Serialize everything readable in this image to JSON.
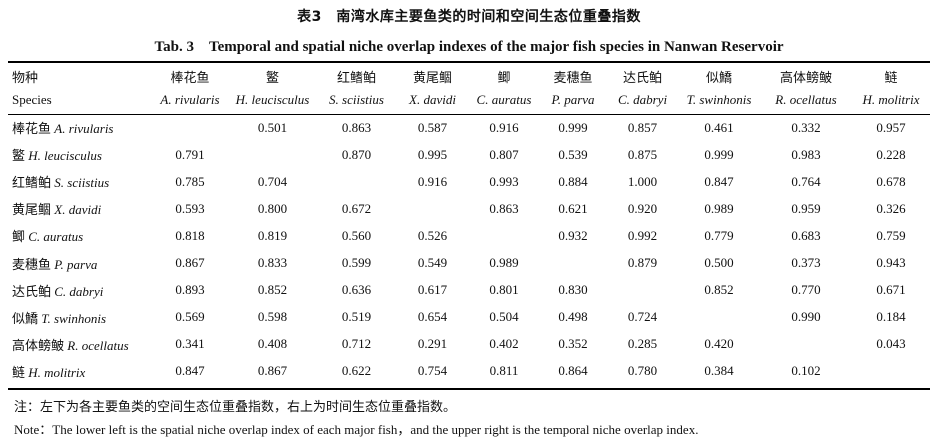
{
  "title_cn": "表3　南湾水库主要鱼类的时间和空间生态位重叠指数",
  "title_en": "Tab. 3　Temporal and spatial niche overlap indexes of the major fish species in Nanwan Reservoir",
  "header": {
    "first_cn": "物种",
    "first_en": "Species",
    "columns": [
      {
        "cn": "棒花鱼",
        "sci": "A. rivularis"
      },
      {
        "cn": "鳘",
        "sci": "H. leucisculus"
      },
      {
        "cn": "红鳍鲌",
        "sci": "S. sciistius"
      },
      {
        "cn": "黄尾鲴",
        "sci": "X. davidi"
      },
      {
        "cn": "鲫",
        "sci": "C. auratus"
      },
      {
        "cn": "麦穗鱼",
        "sci": "P. parva"
      },
      {
        "cn": "达氏鲌",
        "sci": "C. dabryi"
      },
      {
        "cn": "似鱎",
        "sci": "T. swinhonis"
      },
      {
        "cn": "高体鳑鲏",
        "sci": "R. ocellatus"
      },
      {
        "cn": "鲢",
        "sci": "H. molitrix"
      }
    ]
  },
  "rows": [
    {
      "cn": "棒花鱼",
      "sci": "A. rivularis",
      "values": [
        "",
        "0.501",
        "0.863",
        "0.587",
        "0.916",
        "0.999",
        "0.857",
        "0.461",
        "0.332",
        "0.957"
      ]
    },
    {
      "cn": "鳘",
      "sci": "H. leucisculus",
      "values": [
        "0.791",
        "",
        "0.870",
        "0.995",
        "0.807",
        "0.539",
        "0.875",
        "0.999",
        "0.983",
        "0.228"
      ]
    },
    {
      "cn": "红鳍鲌",
      "sci": "S. sciistius",
      "values": [
        "0.785",
        "0.704",
        "",
        "0.916",
        "0.993",
        "0.884",
        "1.000",
        "0.847",
        "0.764",
        "0.678"
      ]
    },
    {
      "cn": "黄尾鲴",
      "sci": "X. davidi",
      "values": [
        "0.593",
        "0.800",
        "0.672",
        "",
        "0.863",
        "0.621",
        "0.920",
        "0.989",
        "0.959",
        "0.326"
      ]
    },
    {
      "cn": "鲫",
      "sci": "C. auratus",
      "values": [
        "0.818",
        "0.819",
        "0.560",
        "0.526",
        "",
        "0.932",
        "0.992",
        "0.779",
        "0.683",
        "0.759"
      ]
    },
    {
      "cn": "麦穗鱼",
      "sci": "P. parva",
      "values": [
        "0.867",
        "0.833",
        "0.599",
        "0.549",
        "0.989",
        "",
        "0.879",
        "0.500",
        "0.373",
        "0.943"
      ]
    },
    {
      "cn": "达氏鲌",
      "sci": "C. dabryi",
      "values": [
        "0.893",
        "0.852",
        "0.636",
        "0.617",
        "0.801",
        "0.830",
        "",
        "0.852",
        "0.770",
        "0.671"
      ]
    },
    {
      "cn": "似鱎",
      "sci": "T. swinhonis",
      "values": [
        "0.569",
        "0.598",
        "0.519",
        "0.654",
        "0.504",
        "0.498",
        "0.724",
        "",
        "0.990",
        "0.184"
      ]
    },
    {
      "cn": "高体鳑鲏",
      "sci": "R. ocellatus",
      "values": [
        "0.341",
        "0.408",
        "0.712",
        "0.291",
        "0.402",
        "0.352",
        "0.285",
        "0.420",
        "",
        "0.043"
      ]
    },
    {
      "cn": "鲢",
      "sci": "H. molitrix",
      "values": [
        "0.847",
        "0.867",
        "0.622",
        "0.754",
        "0.811",
        "0.864",
        "0.780",
        "0.384",
        "0.102",
        ""
      ]
    }
  ],
  "note_cn": "注：左下为各主要鱼类的空间生态位重叠指数，右上为时间生态位重叠指数。",
  "note_en": "Note：The lower left is the spatial niche overlap index of each major fish，and the upper right is the temporal niche overlap index."
}
